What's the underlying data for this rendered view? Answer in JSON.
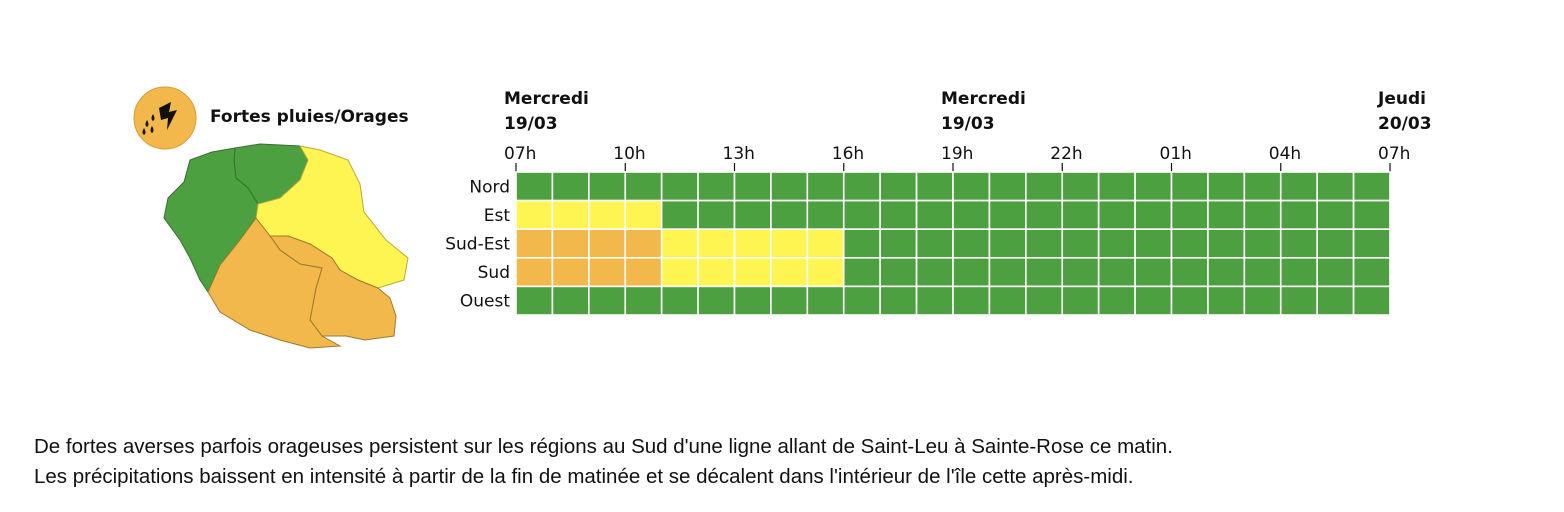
{
  "legend": {
    "label": "Fortes pluies/Orages",
    "icon": "storm-rain-icon",
    "icon_color": "#f2b84b"
  },
  "colors": {
    "green": "#4da040",
    "yellow": "#fef552",
    "orange": "#f2b84b"
  },
  "map": {
    "regions": [
      {
        "name": "Nord",
        "level": "green"
      },
      {
        "name": "Ouest",
        "level": "green"
      },
      {
        "name": "Est",
        "level": "yellow"
      },
      {
        "name": "Sud-Est",
        "level": "orange"
      },
      {
        "name": "Sud",
        "level": "orange"
      }
    ]
  },
  "chart_data": {
    "type": "heatmap",
    "day_labels": [
      {
        "at": "07h",
        "day": "Mercredi",
        "date": "19/03"
      },
      {
        "at": "19h",
        "day": "Mercredi",
        "date": "19/03"
      },
      {
        "at": "07h_next",
        "day": "Jeudi",
        "date": "20/03"
      }
    ],
    "tick_labels": [
      "07h",
      "10h",
      "13h",
      "16h",
      "19h",
      "22h",
      "01h",
      "04h",
      "07h"
    ],
    "hours_count": 24,
    "rows": [
      {
        "label": "Nord",
        "segments": [
          {
            "hours": 24,
            "level": "green"
          }
        ]
      },
      {
        "label": "Est",
        "segments": [
          {
            "hours": 4,
            "level": "yellow"
          },
          {
            "hours": 20,
            "level": "green"
          }
        ]
      },
      {
        "label": "Sud-Est",
        "segments": [
          {
            "hours": 4,
            "level": "orange"
          },
          {
            "hours": 5,
            "level": "yellow"
          },
          {
            "hours": 15,
            "level": "green"
          }
        ]
      },
      {
        "label": "Sud",
        "segments": [
          {
            "hours": 4,
            "level": "orange"
          },
          {
            "hours": 5,
            "level": "yellow"
          },
          {
            "hours": 15,
            "level": "green"
          }
        ]
      },
      {
        "label": "Ouest",
        "segments": [
          {
            "hours": 24,
            "level": "green"
          }
        ]
      }
    ]
  },
  "bulletin": {
    "line1": "De fortes averses parfois orageuses persistent sur les régions au Sud d'une ligne allant de Saint-Leu à Sainte-Rose ce matin.",
    "line2": "Les précipitations baissent en intensité à partir de la fin de matinée et se décalent dans l'intérieur de l'île cette après-midi."
  }
}
